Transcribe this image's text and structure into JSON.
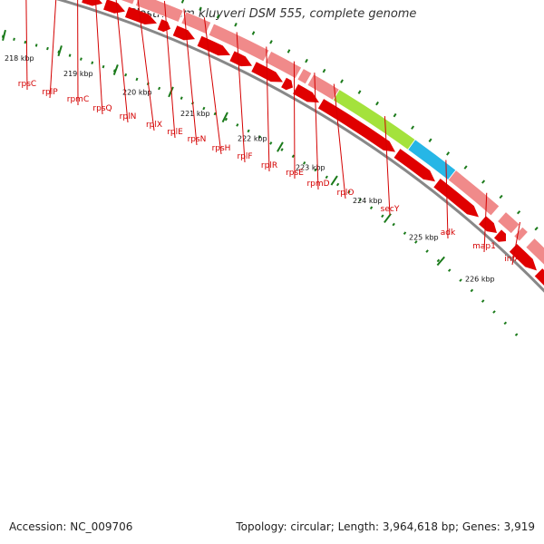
{
  "title": "Clostridium kluyveri DSM 555, complete genome",
  "footer": {
    "accession": "Accession: NC_009706",
    "summary": "Topology: circular; Length: 3,964,618 bp; Genes: 3,919"
  },
  "colors": {
    "gene_track": "#f08a8a",
    "cds_arrow": "#e00000",
    "secY": "#a4e23c",
    "adk": "#26b6e6",
    "label": "#d40000",
    "backbone": "#888888",
    "tick": "#1a7a1a"
  },
  "genes": [
    {
      "name": "rpsC"
    },
    {
      "name": "rplP"
    },
    {
      "name": "rpmC"
    },
    {
      "name": "rpsQ"
    },
    {
      "name": "rplN"
    },
    {
      "name": "rplX"
    },
    {
      "name": "rplE"
    },
    {
      "name": "rpsN"
    },
    {
      "name": "rpsH"
    },
    {
      "name": "rplF"
    },
    {
      "name": "rplR"
    },
    {
      "name": "rpsE"
    },
    {
      "name": "rpmD"
    },
    {
      "name": "rplO"
    },
    {
      "name": "secY"
    },
    {
      "name": "adk"
    },
    {
      "name": "map1"
    },
    {
      "name": "infA"
    }
  ],
  "kbp_labels": [
    "218 kbp",
    "219 kbp",
    "220 kbp",
    "221 kbp",
    "222 kbp",
    "223 kbp",
    "224 kbp",
    "225 kbp",
    "226 kbp"
  ]
}
